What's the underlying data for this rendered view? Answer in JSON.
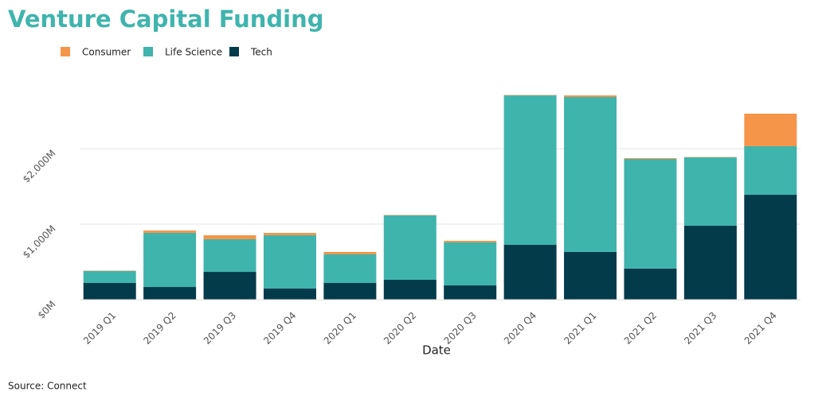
{
  "chart_data": {
    "type": "stacked_bar",
    "title": "Venture Capital Funding",
    "x_label": "Date",
    "source": "Source: Connect",
    "categories": [
      "2019 Q1",
      "2019 Q2",
      "2019 Q3",
      "2019 Q4",
      "2020 Q1",
      "2020 Q2",
      "2020 Q3",
      "2020 Q4",
      "2021 Q1",
      "2021 Q2",
      "2021 Q3",
      "2021 Q4"
    ],
    "series": [
      {
        "name": "Tech",
        "color": "#043b4b",
        "values": [
          221,
          168,
          368,
          147,
          221,
          263,
          189,
          726,
          632,
          411,
          979,
          1389
        ]
      },
      {
        "name": "Life Science",
        "color": "#3fb4ad",
        "values": [
          158,
          716,
          432,
          706,
          379,
          853,
          569,
          1979,
          2052,
          1452,
          905,
          643
        ]
      },
      {
        "name": "Consumer",
        "color": "#f5954a",
        "values": [
          5,
          32,
          53,
          31,
          32,
          5,
          21,
          5,
          21,
          11,
          5,
          431
        ]
      }
    ],
    "legend_order": [
      "Consumer",
      "Life Science",
      "Tech"
    ],
    "ylim": [
      0,
      2900
    ],
    "yticks": [
      {
        "value": 0,
        "label": "$0M"
      },
      {
        "value": 1000,
        "label": "$1,000M"
      },
      {
        "value": 2000,
        "label": "$2,000M"
      }
    ],
    "grid": true
  }
}
